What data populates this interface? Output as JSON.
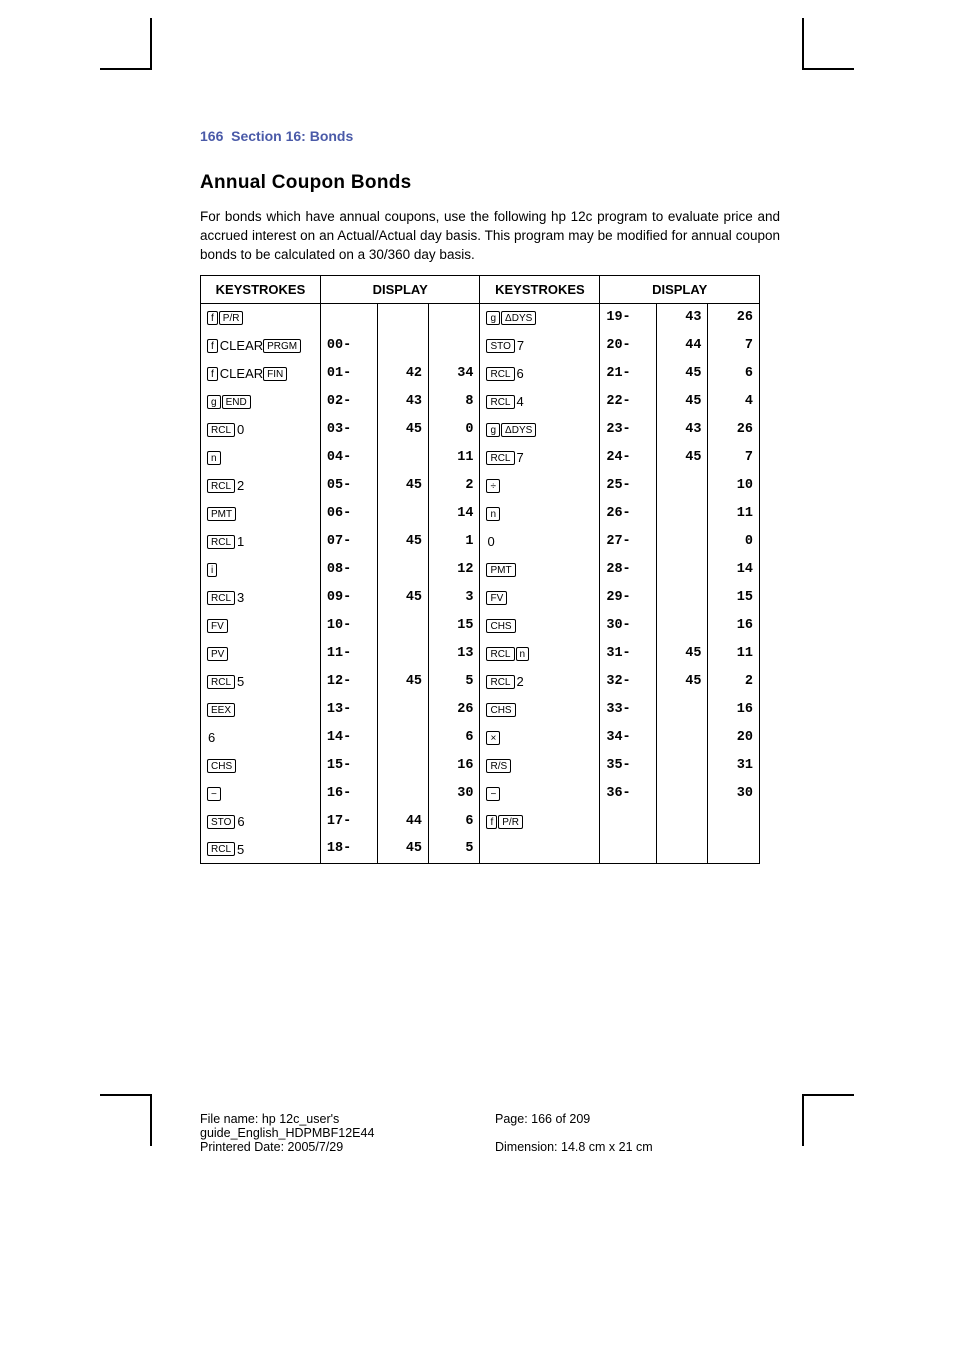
{
  "header": {
    "page_num": "166",
    "section": "Section 16: Bonds"
  },
  "title": "Annual Coupon Bonds",
  "intro": "For bonds which have annual coupons, use the following hp 12c program to evaluate price and accrued interest on an Actual/Actual day basis. This program may be modified for annual coupon bonds to be calculated on a 30/360 day basis.",
  "table": {
    "headers": [
      "KEYSTROKES",
      "DISPLAY",
      "KEYSTROKES",
      "DISPLAY"
    ],
    "rows": [
      {
        "k1": [
          {
            "t": "box",
            "v": "f"
          },
          {
            "t": "box",
            "v": "P/R"
          }
        ],
        "d1": [
          "",
          "",
          ""
        ],
        "k2": [
          {
            "t": "box",
            "v": "g"
          },
          {
            "t": "box",
            "v": "ΔDYS"
          }
        ],
        "d2": [
          "19-",
          "43",
          "26"
        ]
      },
      {
        "k1": [
          {
            "t": "box",
            "v": "f"
          },
          {
            "t": "txt",
            "v": "CLEAR"
          },
          {
            "t": "box",
            "v": "PRGM"
          }
        ],
        "d1": [
          "00-",
          "",
          ""
        ],
        "k2": [
          {
            "t": "box",
            "v": "STO"
          },
          {
            "t": "txt",
            "v": "7"
          }
        ],
        "d2": [
          "20-",
          "44",
          "7"
        ]
      },
      {
        "k1": [
          {
            "t": "box",
            "v": "f"
          },
          {
            "t": "txt",
            "v": "CLEAR"
          },
          {
            "t": "box",
            "v": "FIN"
          }
        ],
        "d1": [
          "01-",
          "42",
          "34"
        ],
        "k2": [
          {
            "t": "box",
            "v": "RCL"
          },
          {
            "t": "txt",
            "v": "6"
          }
        ],
        "d2": [
          "21-",
          "45",
          "6"
        ]
      },
      {
        "k1": [
          {
            "t": "box",
            "v": "g"
          },
          {
            "t": "box",
            "v": "END"
          }
        ],
        "d1": [
          "02-",
          "43",
          "8"
        ],
        "k2": [
          {
            "t": "box",
            "v": "RCL"
          },
          {
            "t": "txt",
            "v": "4"
          }
        ],
        "d2": [
          "22-",
          "45",
          "4"
        ]
      },
      {
        "k1": [
          {
            "t": "box",
            "v": "RCL"
          },
          {
            "t": "txt",
            "v": "0"
          }
        ],
        "d1": [
          "03-",
          "45",
          "0"
        ],
        "k2": [
          {
            "t": "box",
            "v": "g"
          },
          {
            "t": "box",
            "v": "ΔDYS"
          }
        ],
        "d2": [
          "23-",
          "43",
          "26"
        ]
      },
      {
        "k1": [
          {
            "t": "box",
            "v": "n"
          }
        ],
        "d1": [
          "04-",
          "",
          "11"
        ],
        "k2": [
          {
            "t": "box",
            "v": "RCL"
          },
          {
            "t": "txt",
            "v": "7"
          }
        ],
        "d2": [
          "24-",
          "45",
          "7"
        ]
      },
      {
        "k1": [
          {
            "t": "box",
            "v": "RCL"
          },
          {
            "t": "txt",
            "v": "2"
          }
        ],
        "d1": [
          "05-",
          "45",
          "2"
        ],
        "k2": [
          {
            "t": "box",
            "v": "÷"
          }
        ],
        "d2": [
          "25-",
          "",
          "10"
        ]
      },
      {
        "k1": [
          {
            "t": "box",
            "v": "PMT"
          }
        ],
        "d1": [
          "06-",
          "",
          "14"
        ],
        "k2": [
          {
            "t": "box",
            "v": "n"
          }
        ],
        "d2": [
          "26-",
          "",
          "11"
        ]
      },
      {
        "k1": [
          {
            "t": "box",
            "v": "RCL"
          },
          {
            "t": "txt",
            "v": "1"
          }
        ],
        "d1": [
          "07-",
          "45",
          "1"
        ],
        "k2": [
          {
            "t": "txt",
            "v": "0"
          }
        ],
        "d2": [
          "27-",
          "",
          "0"
        ]
      },
      {
        "k1": [
          {
            "t": "box",
            "v": "i"
          }
        ],
        "d1": [
          "08-",
          "",
          "12"
        ],
        "k2": [
          {
            "t": "box",
            "v": "PMT"
          }
        ],
        "d2": [
          "28-",
          "",
          "14"
        ]
      },
      {
        "k1": [
          {
            "t": "box",
            "v": "RCL"
          },
          {
            "t": "txt",
            "v": "3"
          }
        ],
        "d1": [
          "09-",
          "45",
          "3"
        ],
        "k2": [
          {
            "t": "box",
            "v": "FV"
          }
        ],
        "d2": [
          "29-",
          "",
          "15"
        ]
      },
      {
        "k1": [
          {
            "t": "box",
            "v": "FV"
          }
        ],
        "d1": [
          "10-",
          "",
          "15"
        ],
        "k2": [
          {
            "t": "box",
            "v": "CHS"
          }
        ],
        "d2": [
          "30-",
          "",
          "16"
        ]
      },
      {
        "k1": [
          {
            "t": "box",
            "v": "PV"
          }
        ],
        "d1": [
          "11-",
          "",
          "13"
        ],
        "k2": [
          {
            "t": "box",
            "v": "RCL"
          },
          {
            "t": "box",
            "v": "n"
          }
        ],
        "d2": [
          "31-",
          "45",
          "11"
        ]
      },
      {
        "k1": [
          {
            "t": "box",
            "v": "RCL"
          },
          {
            "t": "txt",
            "v": "5"
          }
        ],
        "d1": [
          "12-",
          "45",
          "5"
        ],
        "k2": [
          {
            "t": "box",
            "v": "RCL"
          },
          {
            "t": "txt",
            "v": "2"
          }
        ],
        "d2": [
          "32-",
          "45",
          "2"
        ]
      },
      {
        "k1": [
          {
            "t": "box",
            "v": "EEX"
          }
        ],
        "d1": [
          "13-",
          "",
          "26"
        ],
        "k2": [
          {
            "t": "box",
            "v": "CHS"
          }
        ],
        "d2": [
          "33-",
          "",
          "16"
        ]
      },
      {
        "k1": [
          {
            "t": "txt",
            "v": "6"
          }
        ],
        "d1": [
          "14-",
          "",
          "6"
        ],
        "k2": [
          {
            "t": "box",
            "v": "×"
          }
        ],
        "d2": [
          "34-",
          "",
          "20"
        ]
      },
      {
        "k1": [
          {
            "t": "box",
            "v": "CHS"
          }
        ],
        "d1": [
          "15-",
          "",
          "16"
        ],
        "k2": [
          {
            "t": "box",
            "v": "R/S"
          }
        ],
        "d2": [
          "35-",
          "",
          "31"
        ]
      },
      {
        "k1": [
          {
            "t": "box",
            "v": "−"
          }
        ],
        "d1": [
          "16-",
          "",
          "30"
        ],
        "k2": [
          {
            "t": "box",
            "v": "−"
          }
        ],
        "d2": [
          "36-",
          "",
          "30"
        ]
      },
      {
        "k1": [
          {
            "t": "box",
            "v": "STO"
          },
          {
            "t": "txt",
            "v": "6"
          }
        ],
        "d1": [
          "17-",
          "44",
          "6"
        ],
        "k2": [
          {
            "t": "box",
            "v": "f"
          },
          {
            "t": "box",
            "v": "P/R"
          }
        ],
        "d2": [
          "",
          "",
          ""
        ]
      },
      {
        "k1": [
          {
            "t": "box",
            "v": "RCL"
          },
          {
            "t": "txt",
            "v": "5"
          }
        ],
        "d1": [
          "18-",
          "45",
          "5"
        ],
        "k2": [],
        "d2": [
          "",
          "",
          ""
        ]
      }
    ]
  },
  "footer": {
    "filename": "File name: hp 12c_user's guide_English_HDPMBF12E44",
    "printdate": "Printered Date: 2005/7/29",
    "pageinfo": "Page: 166 of 209",
    "dimension": "Dimension: 14.8 cm x 21 cm"
  },
  "colors": {
    "header_blue": "#4a5aa8",
    "text": "#000000",
    "bg": "#ffffff"
  }
}
